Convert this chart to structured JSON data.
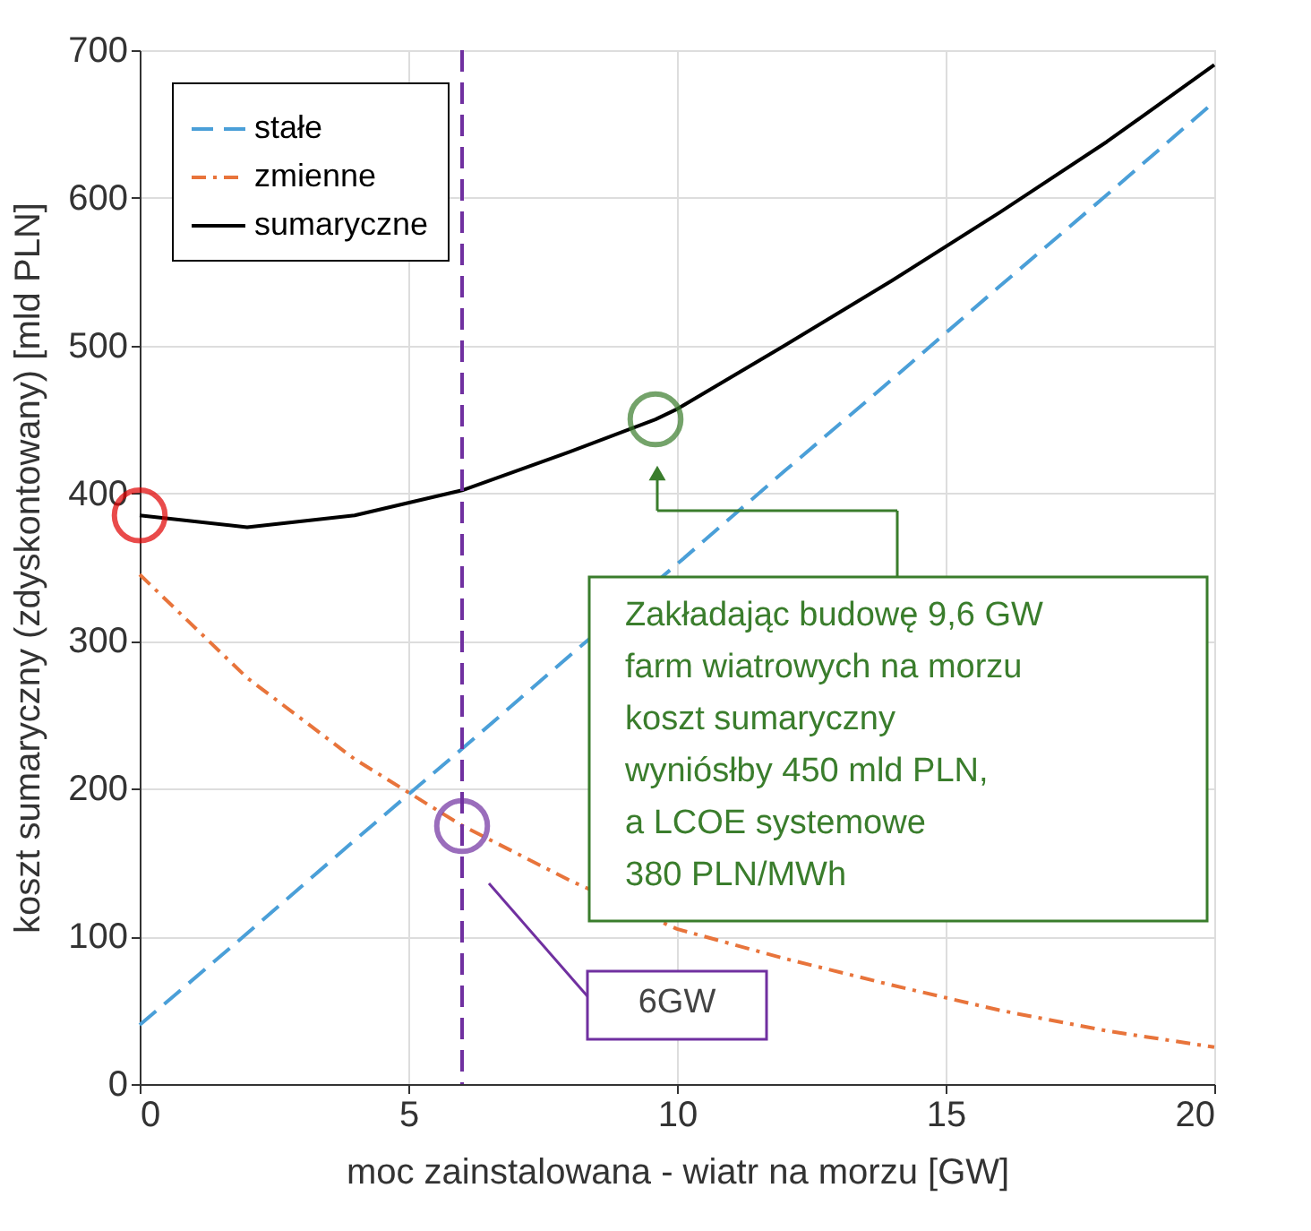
{
  "chart_data": {
    "type": "line",
    "xlabel": "moc zainstalowana - wiatr na morzu [GW]",
    "ylabel": "koszt sumaryczny (zdyskontowany) [mld PLN]",
    "x": [
      0,
      2,
      4,
      6,
      8,
      10,
      12,
      14,
      16,
      18,
      20
    ],
    "series": [
      {
        "name": "stałe",
        "color": "#4a9fd8",
        "line_style": "dashed",
        "values": [
          40,
          102,
          165,
          227,
          290,
          352,
          415,
          477,
          540,
          602,
          665
        ]
      },
      {
        "name": "zmienne",
        "color": "#e8743b",
        "line_style": "dotted",
        "values": [
          345,
          275,
          220,
          175,
          138,
          105,
          85,
          67,
          50,
          36,
          25
        ]
      },
      {
        "name": "sumaryczne",
        "color": "#000000",
        "line_style": "solid",
        "x": [
          0,
          2,
          4,
          6,
          8,
          9.6,
          10,
          12,
          14,
          16,
          18,
          20
        ],
        "values": [
          385,
          377,
          385,
          402,
          428,
          450,
          457,
          500,
          544,
          590,
          638,
          690
        ]
      }
    ],
    "xlim": [
      0,
      20
    ],
    "xticks": [
      0,
      5,
      10,
      15,
      20
    ],
    "ylim": [
      0,
      700
    ],
    "yticks": [
      0,
      100,
      200,
      300,
      400,
      500,
      600,
      700
    ],
    "grid": true,
    "legend": "top left",
    "ref_lines": [
      {
        "axis": "x",
        "value": 6,
        "label": null,
        "color": "#7030a0",
        "line_style": "dashed"
      }
    ],
    "annotations": [
      "Zakładając budowę 9,6 GW\nfarm wiatrowych na morzu\nkoszt sumaryczny\nwyniósłby 450 mld PLN,\na LCOE systemowe\n380 PLN/MWh",
      "6GW"
    ]
  }
}
